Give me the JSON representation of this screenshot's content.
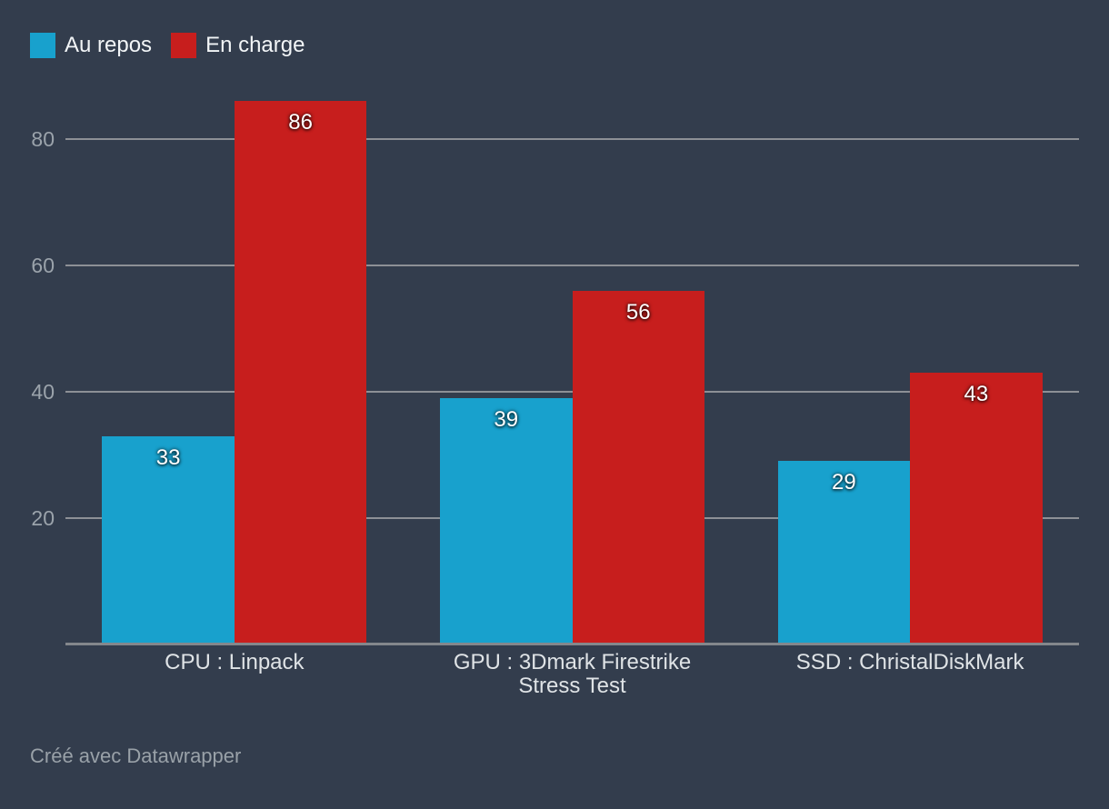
{
  "footer": {
    "credit": "Créé avec Datawrapper"
  },
  "chart_data": {
    "type": "bar",
    "title": "",
    "categories": [
      "CPU : Linpack",
      "GPU : 3Dmark Firestrike Stress Test",
      "SSD : ChristalDiskMark"
    ],
    "series": [
      {
        "name": "Au repos",
        "color": "#18a1cd",
        "values": [
          33,
          39,
          29
        ]
      },
      {
        "name": "En charge",
        "color": "#c71e1d",
        "values": [
          86,
          56,
          43
        ]
      }
    ],
    "y_ticks": [
      20,
      40,
      60,
      80
    ],
    "ylim": [
      0,
      102
    ],
    "grid": true,
    "legend_position": "top-left",
    "background": "#333d4d",
    "xlabel": "",
    "ylabel": ""
  }
}
